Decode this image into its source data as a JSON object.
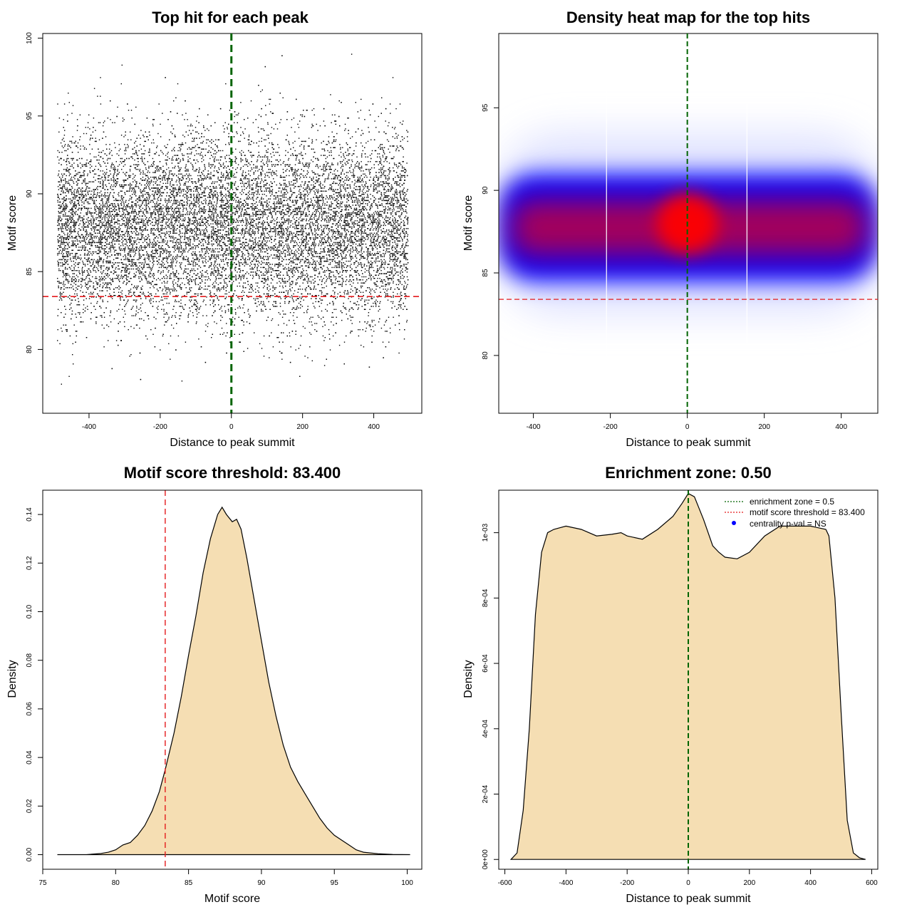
{
  "chart_data": [
    {
      "type": "scatter",
      "title": "Top hit for each peak",
      "xlabel": "Distance to peak summit",
      "ylabel": "Motif score",
      "xlim": [
        -530,
        535
      ],
      "ylim": [
        75.9,
        100.3
      ],
      "xticks": [
        -400,
        -200,
        0,
        200,
        400
      ],
      "yticks": [
        80,
        85,
        90,
        95,
        100
      ],
      "xtick_labels": [
        "-400",
        "-200",
        "0",
        "200",
        "400"
      ],
      "ytick_labels": [
        "80",
        "85",
        "90",
        "95",
        "100"
      ],
      "reference_lines": {
        "vertical_x": 0,
        "horizontal_y": 83.4
      },
      "point_cloud": {
        "count": 16000,
        "x_range": [
          -490,
          495
        ],
        "mean_score": 87.9,
        "sd_score": 2.9,
        "point_color": "#000000"
      },
      "colors": {
        "vertical": "#006400",
        "horizontal": "#e41a1c"
      }
    },
    {
      "type": "heatmap",
      "title": "Density heat map for the top hits",
      "xlabel": "Distance to peak summit",
      "ylabel": "Motif score",
      "xlim": [
        -490,
        495
      ],
      "ylim": [
        76.5,
        99.5
      ],
      "xticks": [
        -400,
        -200,
        0,
        200,
        400
      ],
      "yticks": [
        80,
        85,
        90,
        95
      ],
      "xtick_labels": [
        "-400",
        "-200",
        "0",
        "200",
        "400"
      ],
      "ytick_labels": [
        "80",
        "85",
        "90",
        "95"
      ],
      "reference_lines": {
        "vertical_x": 0,
        "horizontal_y": 83.4
      },
      "white_stripes_x": [
        -210,
        155
      ],
      "density_bands": [
        {
          "label": "low",
          "x": [
            -490,
            495
          ],
          "y": [
            82.5,
            93.5
          ],
          "color": "#dde0ff"
        },
        {
          "label": "medium",
          "x": [
            -490,
            495
          ],
          "y": [
            84.5,
            91.0
          ],
          "color": "#0000ff"
        },
        {
          "label": "high",
          "x": [
            -460,
            470
          ],
          "y": [
            86.0,
            89.5
          ],
          "color": "#cc0033"
        },
        {
          "label": "peak",
          "x": [
            -80,
            80
          ],
          "y": [
            86.2,
            89.8
          ],
          "color": "#ff0000"
        }
      ],
      "colors": {
        "vertical": "#006400",
        "horizontal": "#e41a1c"
      }
    },
    {
      "type": "area",
      "title": "Motif score threshold: 83.400",
      "xlabel": "Motif score",
      "ylabel": "Density",
      "xlim": [
        75,
        101
      ],
      "ylim": [
        -0.006,
        0.15
      ],
      "xticks": [
        75,
        80,
        85,
        90,
        95,
        100
      ],
      "yticks": [
        0.0,
        0.02,
        0.04,
        0.06,
        0.08,
        0.1,
        0.12,
        0.14
      ],
      "xtick_labels": [
        "75",
        "80",
        "85",
        "90",
        "95",
        "100"
      ],
      "ytick_labels": [
        "0.00",
        "0.02",
        "0.04",
        "0.06",
        "0.08",
        "0.10",
        "0.12",
        "0.14"
      ],
      "x": [
        76,
        78,
        79,
        79.5,
        80,
        80.5,
        81,
        81.5,
        82,
        82.5,
        83,
        83.4,
        84,
        84.5,
        85,
        85.5,
        86,
        86.5,
        87,
        87.3,
        87.6,
        88,
        88.3,
        88.6,
        89,
        89.5,
        90,
        90.5,
        91,
        91.5,
        92,
        92.5,
        93,
        93.5,
        94,
        94.5,
        95,
        95.5,
        96,
        96.5,
        97,
        98,
        99,
        100.2
      ],
      "y": [
        0,
        0,
        0.0005,
        0.001,
        0.002,
        0.004,
        0.005,
        0.008,
        0.012,
        0.018,
        0.026,
        0.035,
        0.05,
        0.065,
        0.082,
        0.098,
        0.116,
        0.13,
        0.14,
        0.143,
        0.14,
        0.137,
        0.138,
        0.134,
        0.122,
        0.105,
        0.088,
        0.071,
        0.057,
        0.045,
        0.036,
        0.03,
        0.025,
        0.02,
        0.015,
        0.011,
        0.008,
        0.006,
        0.004,
        0.002,
        0.001,
        0.0004,
        0.0001,
        0
      ],
      "threshold": 83.4,
      "colors": {
        "fill": "#f5deb3",
        "line": "#000000",
        "threshold": "#e41a1c"
      }
    },
    {
      "type": "area",
      "title": "Enrichment zone: 0.50",
      "xlabel": "Distance to peak summit",
      "ylabel": "Density",
      "xlim": [
        -620,
        620
      ],
      "ylim": [
        -3e-05,
        0.00113
      ],
      "xticks": [
        -600,
        -400,
        -200,
        0,
        200,
        400,
        600
      ],
      "yticks": [
        0,
        0.0002,
        0.0004,
        0.0006,
        0.0008,
        0.001
      ],
      "xtick_labels": [
        "-600",
        "-400",
        "-200",
        "0",
        "200",
        "400",
        "600"
      ],
      "ytick_labels": [
        "0e+00",
        "2e-04",
        "4e-04",
        "6e-04",
        "8e-04",
        "1e-03"
      ],
      "x": [
        -580,
        -560,
        -540,
        -520,
        -500,
        -480,
        -460,
        -440,
        -420,
        -400,
        -350,
        -300,
        -250,
        -220,
        -200,
        -150,
        -100,
        -50,
        -20,
        0,
        20,
        50,
        80,
        100,
        120,
        160,
        200,
        250,
        300,
        350,
        400,
        450,
        460,
        480,
        500,
        520,
        540,
        560,
        580
      ],
      "y": [
        0,
        2e-05,
        0.00015,
        0.0004,
        0.00075,
        0.00094,
        0.001,
        0.00101,
        0.001015,
        0.00102,
        0.00101,
        0.00099,
        0.000995,
        0.001,
        0.00099,
        0.00098,
        0.00101,
        0.00105,
        0.00109,
        0.00112,
        0.00111,
        0.00104,
        0.00096,
        0.00094,
        0.000925,
        0.00092,
        0.00094,
        0.00099,
        0.00102,
        0.00102,
        0.00102,
        0.00101,
        0.00099,
        0.0008,
        0.00045,
        0.00012,
        2e-05,
        5e-06,
        0
      ],
      "enrichment_x": 0,
      "legend": {
        "position": "top-right",
        "items": [
          {
            "label": "enrichment zone = 0.5",
            "style": "dotted",
            "color": "#006400"
          },
          {
            "label": "motif score threshold = 83.400",
            "style": "dotted",
            "color": "#e41a1c"
          },
          {
            "label": "centrality p-val = NS",
            "style": "point",
            "color": "#0000ff"
          }
        ]
      },
      "colors": {
        "fill": "#f5deb3",
        "line": "#000000",
        "vertical": "#006400"
      }
    }
  ]
}
